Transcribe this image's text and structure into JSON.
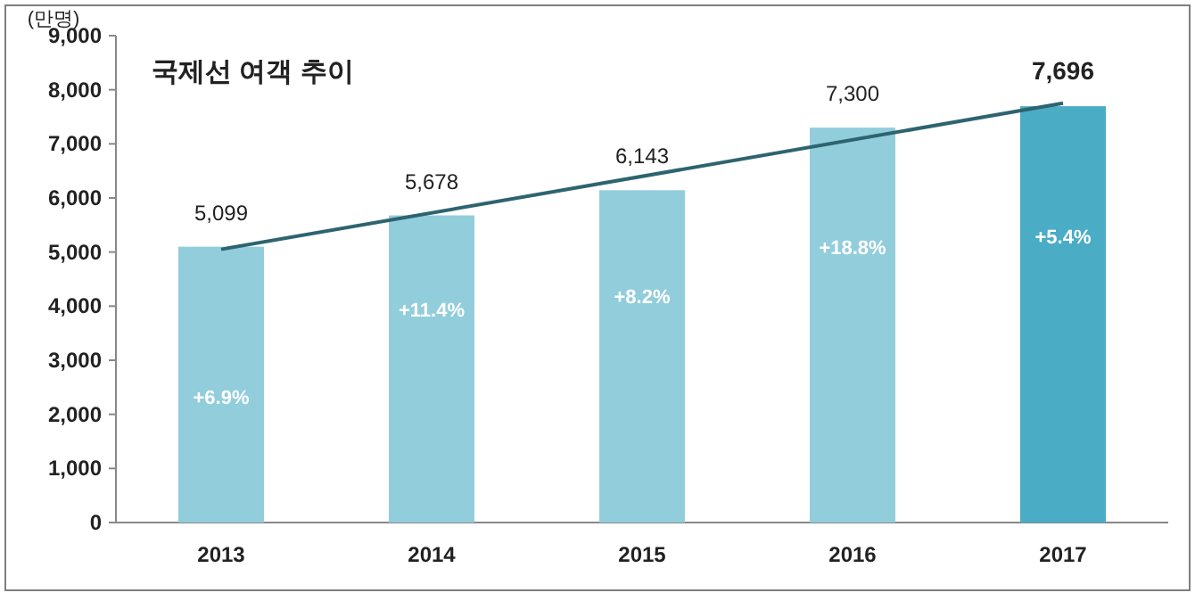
{
  "chart_data": {
    "type": "bar",
    "title": "국제선 여객 추이",
    "ylabel": "(만명)",
    "categories": [
      "2013",
      "2014",
      "2015",
      "2016",
      "2017"
    ],
    "series": [
      {
        "colors": [
          "#92cddc",
          "#92cddc",
          "#92cddc",
          "#92cddc",
          "#4bacc6"
        ],
        "values": [
          5099,
          5678,
          6143,
          7300,
          7696
        ],
        "value_labels": [
          "5,099",
          "5,678",
          "6,143",
          "7,300",
          "7,696"
        ]
      },
      {
        "type": "line",
        "color": "#2d6470",
        "values": [
          5050,
          null,
          null,
          null,
          7750
        ]
      }
    ],
    "ylim": [
      0,
      9000
    ],
    "yticks": [
      {
        "value": 0,
        "label": "0"
      },
      {
        "value": 1000,
        "label": "1,000"
      },
      {
        "value": 2000,
        "label": "2,000"
      },
      {
        "value": 3000,
        "label": "3,000"
      },
      {
        "value": 4000,
        "label": "4,000"
      },
      {
        "value": 5000,
        "label": "5,000"
      },
      {
        "value": 6000,
        "label": "6,000"
      },
      {
        "value": 7000,
        "label": "7,000"
      },
      {
        "value": 8000,
        "label": "8,000"
      },
      {
        "value": 9000,
        "label": "9,000"
      }
    ],
    "annotations": [
      "+6.9%",
      "+11.4%",
      "+8.2%",
      "+18.8%",
      "+5.4%"
    ],
    "grid": false
  }
}
